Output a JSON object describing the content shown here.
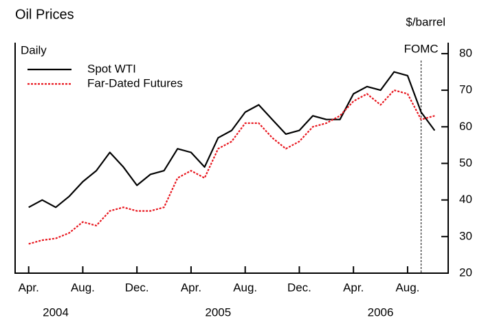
{
  "chart_data": {
    "type": "line",
    "title": "Oil Prices",
    "y_unit": "$/barrel",
    "frequency_note": "Daily",
    "x": [
      "2004-04",
      "2004-05",
      "2004-06",
      "2004-07",
      "2004-08",
      "2004-09",
      "2004-10",
      "2004-11",
      "2004-12",
      "2005-01",
      "2005-02",
      "2005-03",
      "2005-04",
      "2005-05",
      "2005-06",
      "2005-07",
      "2005-08",
      "2005-09",
      "2005-10",
      "2005-11",
      "2005-12",
      "2006-01",
      "2006-02",
      "2006-03",
      "2006-04",
      "2006-05",
      "2006-06",
      "2006-07",
      "2006-08",
      "2006-09",
      "2006-10"
    ],
    "series": [
      {
        "name": "Spot WTI",
        "color": "#000000",
        "dash": "solid",
        "values": [
          38,
          40,
          38,
          41,
          45,
          48,
          53,
          49,
          44,
          47,
          48,
          54,
          53,
          49,
          57,
          59,
          64,
          66,
          62,
          58,
          59,
          63,
          62,
          62,
          69,
          71,
          70,
          75,
          74,
          64,
          59
        ]
      },
      {
        "name": "Far-Dated Futures",
        "color": "#e8141c",
        "dash": "dotted",
        "values": [
          28,
          29,
          29.5,
          31,
          34,
          33,
          37,
          38,
          37,
          37,
          38,
          46,
          48,
          46,
          54,
          56,
          61,
          61,
          57,
          54,
          56,
          60,
          61,
          63,
          67,
          69,
          66,
          70,
          69,
          62,
          63
        ]
      }
    ],
    "xlim": [
      "2004-03",
      "2006-11"
    ],
    "xticks": [
      {
        "value": "2004-04",
        "label": "Apr."
      },
      {
        "value": "2004-08",
        "label": "Aug."
      },
      {
        "value": "2004-12",
        "label": "Dec."
      },
      {
        "value": "2005-04",
        "label": "Apr."
      },
      {
        "value": "2005-08",
        "label": "Aug."
      },
      {
        "value": "2005-12",
        "label": "Dec."
      },
      {
        "value": "2006-04",
        "label": "Apr."
      },
      {
        "value": "2006-08",
        "label": "Aug."
      }
    ],
    "year_labels": [
      {
        "value": "2004-06",
        "label": "2004"
      },
      {
        "value": "2005-06",
        "label": "2005"
      },
      {
        "value": "2006-06",
        "label": "2006"
      }
    ],
    "ylim": [
      20,
      83
    ],
    "yticks": [
      20,
      30,
      40,
      50,
      60,
      70,
      80
    ],
    "annotation": {
      "value": "2006-09",
      "label": "FOMC"
    },
    "legend": "upper-left"
  }
}
